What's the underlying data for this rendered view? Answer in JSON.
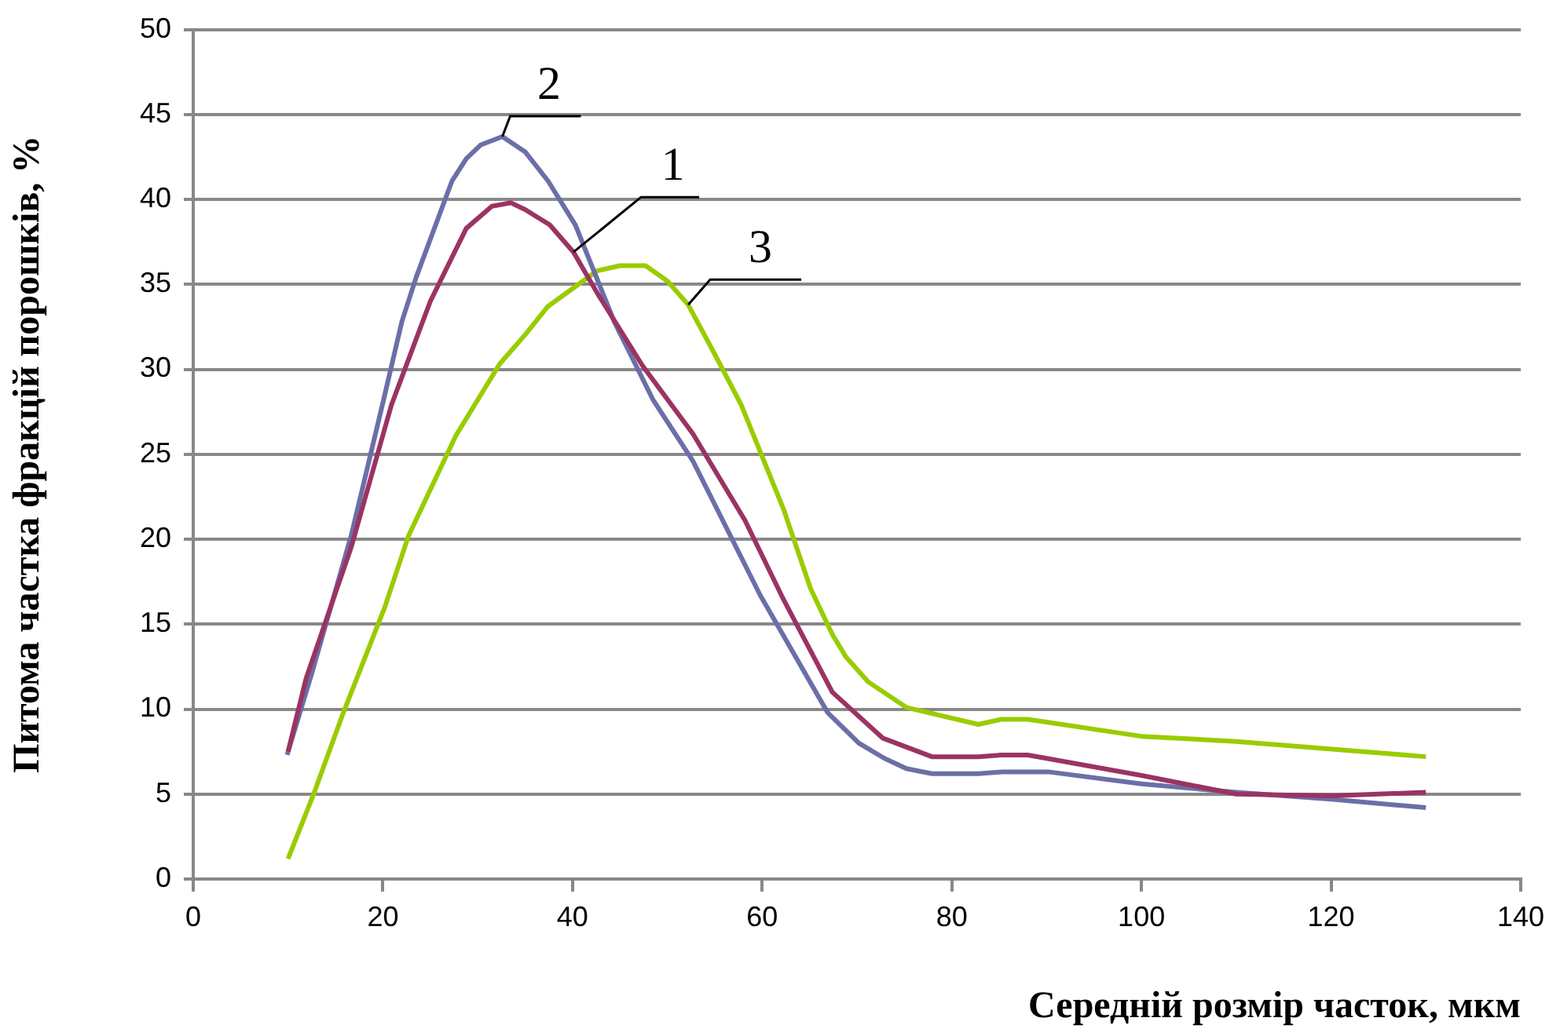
{
  "chart_data": {
    "type": "line",
    "xlabel": "Середній розмір часток, мкм",
    "ylabel": "Питома частка фракцій порошків, %",
    "xlim": [
      0,
      140
    ],
    "xticks": [
      0,
      20,
      40,
      60,
      80,
      100,
      120,
      140
    ],
    "ylim": [
      0,
      50
    ],
    "yticks": [
      0,
      5,
      10,
      15,
      20,
      25,
      30,
      35,
      40,
      45,
      50
    ],
    "grid": "y",
    "legend": false,
    "marker": "none",
    "line_style": "solid",
    "annotations": [
      {
        "text": "1",
        "x": 40.1,
        "y": 36.9
      },
      {
        "text": "2",
        "x": 32.6,
        "y": 43.7
      },
      {
        "text": "3",
        "x": 52.2,
        "y": 33.8
      }
    ],
    "series": [
      {
        "color": "#9b3363",
        "x": [
          10,
          11.9,
          16.7,
          20.9,
          25,
          28.8,
          31.5,
          33.5,
          35,
          37.6,
          40.1,
          42.7,
          47.4,
          52.7,
          58.2,
          62.3,
          67.4,
          72.7,
          77.9,
          82.8,
          85.2,
          88,
          90,
          100,
          110,
          120,
          130
        ],
        "values": [
          7.5,
          11.8,
          19.6,
          27.9,
          34,
          38.3,
          39.6,
          39.8,
          39.4,
          38.5,
          36.9,
          34.4,
          30.2,
          26.2,
          21.1,
          16.4,
          11,
          8.3,
          7.2,
          7.2,
          7.3,
          7.3,
          7.1,
          6.1,
          5,
          4.9,
          5.1
        ]
      },
      {
        "color": "#6b6fa8",
        "x": [
          9.9,
          12.5,
          16.7,
          20.2,
          22,
          23.5,
          27.3,
          28.8,
          30.3,
          32.6,
          35,
          37.4,
          40.3,
          44.4,
          48.5,
          52.7,
          59.8,
          66.9,
          70.2,
          72.9,
          75.2,
          77.9,
          82.8,
          85.2,
          90.3,
          100,
          110,
          120,
          130
        ],
        "values": [
          7.3,
          12.1,
          20.3,
          28.5,
          32.8,
          35.4,
          41.1,
          42.4,
          43.2,
          43.7,
          42.8,
          41.1,
          38.5,
          32.8,
          28.2,
          24.6,
          16.7,
          9.8,
          8,
          7.1,
          6.5,
          6.2,
          6.2,
          6.3,
          6.3,
          5.6,
          5.1,
          4.7,
          4.2
        ]
      },
      {
        "color": "#99cc00",
        "x": [
          10,
          12.7,
          15.7,
          20.2,
          22.7,
          27.7,
          32.3,
          35.1,
          37.4,
          42.6,
          45,
          47.7,
          50,
          52.2,
          54.8,
          57.8,
          62.3,
          65.1,
          67.4,
          68.8,
          71.2,
          75.2,
          82.8,
          85.2,
          88,
          100,
          110,
          130
        ],
        "values": [
          1.2,
          5,
          9.6,
          16,
          20.2,
          26.1,
          30.3,
          32.1,
          33.7,
          35.8,
          36.1,
          36.1,
          35.2,
          33.8,
          31.1,
          27.9,
          21.7,
          17.1,
          14.4,
          13.1,
          11.6,
          10.1,
          9.1,
          9.4,
          9.4,
          8.4,
          8.1,
          7.2
        ]
      }
    ]
  }
}
